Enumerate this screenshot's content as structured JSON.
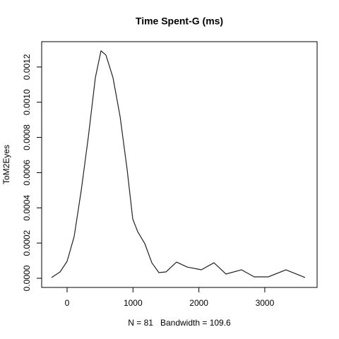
{
  "chart_data": {
    "type": "line",
    "title": "Time Spent-G (ms)",
    "x_label": "N = 81   Bandwidth = 109.6",
    "y_label": "ToM2Eyes",
    "x": [
      -236,
      -107,
      0,
      107,
      214,
      321,
      429,
      514,
      589,
      696,
      804,
      911,
      996,
      1071,
      1179,
      1286,
      1393,
      1500,
      1661,
      1821,
      2036,
      2229,
      2411,
      2646,
      2839,
      3054,
      3321,
      3611
    ],
    "series": [
      {
        "color": "#222222",
        "values": [
          4e-06,
          3.6e-05,
          9.63e-05,
          0.000237,
          0.000498,
          0.000799,
          0.00114,
          0.001292,
          0.001268,
          0.00114,
          0.000919,
          0.000618,
          0.000337,
          0.000265,
          0.000197,
          8.8e-05,
          3.2e-05,
          3.6e-05,
          9.2e-05,
          6.4e-05,
          4.8e-05,
          8.8e-05,
          2.4e-05,
          4.8e-05,
          8e-06,
          8e-06,
          4.8e-05,
          4e-06
        ]
      }
    ],
    "xlim": [
      -386,
      3794
    ],
    "ylim": [
      -5.22e-05,
      0.001344
    ],
    "xticks": [
      0,
      1000,
      2000,
      3000
    ],
    "yticks": [
      {
        "value": 0,
        "label": "0.0000"
      },
      {
        "value": 0.0002,
        "label": "0.0002"
      },
      {
        "value": 0.0004,
        "label": "0.0004"
      },
      {
        "value": 0.0006,
        "label": "0.0006"
      },
      {
        "value": 0.0008,
        "label": "0.0008"
      },
      {
        "value": 0.001,
        "label": "0.0010"
      },
      {
        "value": 0.0012,
        "label": "0.0012"
      }
    ]
  }
}
